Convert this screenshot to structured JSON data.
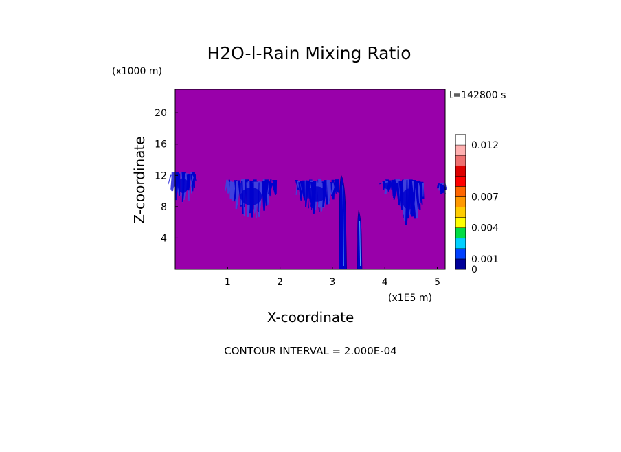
{
  "chart_data": {
    "type": "heatmap",
    "title": "H2O-l-Rain Mixing Ratio",
    "time_label": "t=142800 s",
    "xlabel": "X-coordinate",
    "ylabel": "Z-coordinate",
    "x_unit": "(x1E5 m)",
    "y_unit": "(x1000 m)",
    "xlim": [
      0,
      5.15
    ],
    "ylim": [
      0,
      23
    ],
    "x_ticks": [
      1,
      2,
      3,
      4,
      5
    ],
    "y_ticks": [
      4,
      8,
      12,
      16,
      20
    ],
    "background_value": 0.0002,
    "contour_interval_label": "CONTOUR INTERVAL = 2.000E-04",
    "colorbar": {
      "levels": [
        0,
        0.001,
        0.002,
        0.003,
        0.004,
        0.005,
        0.006,
        0.007,
        0.008,
        0.009,
        0.01,
        0.011,
        0.012,
        0.013
      ],
      "colors": [
        "#000099",
        "#0040ff",
        "#00d0ff",
        "#00dd44",
        "#ffff00",
        "#ffcc00",
        "#ff9900",
        "#ff6600",
        "#ff0000",
        "#dd0000",
        "#ee7070",
        "#ffb0b0"
      ],
      "labels": [
        {
          "text": "0",
          "value": 0
        },
        {
          "text": "0.001",
          "value": 0.001
        },
        {
          "text": "0.004",
          "value": 0.004
        },
        {
          "text": "0.007",
          "value": 0.007
        },
        {
          "text": "0.012",
          "value": 0.012
        }
      ]
    },
    "field_colors": {
      "background": "#9900aa",
      "low": "#2020aa",
      "core": "#0000cc",
      "edge": "#4040dd"
    },
    "features": [
      {
        "name": "cloud-band-1",
        "x_center": 0.15,
        "x_width": 0.45,
        "z_top": 12.5,
        "z_bottom": 8.2
      },
      {
        "name": "cloud-band-2",
        "x_center": 1.45,
        "x_width": 0.9,
        "z_top": 11.5,
        "z_bottom": 6.3
      },
      {
        "name": "cloud-band-3",
        "x_center": 2.7,
        "x_width": 0.8,
        "z_top": 11.5,
        "z_bottom": 7.0
      },
      {
        "name": "cloud-band-4",
        "x_center": 4.05,
        "x_width": 0.25,
        "z_top": 11.5,
        "z_bottom": 9.5
      },
      {
        "name": "cloud-band-5",
        "x_center": 4.45,
        "x_width": 0.55,
        "z_top": 11.5,
        "z_bottom": 5.5
      },
      {
        "name": "cloud-band-6",
        "x_center": 5.1,
        "x_width": 0.1,
        "z_top": 11.0,
        "z_bottom": 9.5
      },
      {
        "name": "rain-shaft-1",
        "x_center": 3.2,
        "x_width": 0.16,
        "z_top": 12.0,
        "z_bottom": 0.0
      },
      {
        "name": "rain-shaft-2",
        "x_center": 3.52,
        "x_width": 0.1,
        "z_top": 7.5,
        "z_bottom": 0.0
      }
    ]
  }
}
